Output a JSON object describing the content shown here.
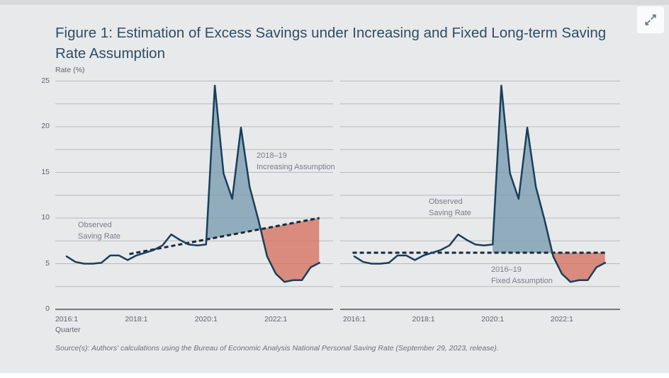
{
  "card": {
    "expand_icon": "expand-diagonal-arrows-icon"
  },
  "source_note": "Source(s): Authors' calculations using the Bureau of Economic Analysis National Personal Saving Rate (September 29, 2023, release).",
  "chart_data": {
    "type": "area",
    "title": "Figure 1: Estimation of Excess Savings under Increasing and Fixed Long-term Saving Rate Assumption",
    "ylabel": "Rate (%)",
    "xlabel": "Quarter",
    "ylim": [
      0,
      25
    ],
    "y_ticks": [
      0,
      5,
      10,
      15,
      20,
      25
    ],
    "gridlines_every": 2.5,
    "grid": true,
    "x": [
      "2016:1",
      "2016:2",
      "2016:3",
      "2016:4",
      "2017:1",
      "2017:2",
      "2017:3",
      "2017:4",
      "2018:1",
      "2018:2",
      "2018:3",
      "2018:4",
      "2019:1",
      "2019:2",
      "2019:3",
      "2019:4",
      "2020:1",
      "2020:2",
      "2020:3",
      "2020:4",
      "2021:1",
      "2021:2",
      "2021:3",
      "2021:4",
      "2022:1",
      "2022:2",
      "2022:3",
      "2022:4",
      "2023:1",
      "2023:2"
    ],
    "series": [
      {
        "name": "Observed Saving Rate",
        "values": [
          5.8,
          5.2,
          5.0,
          5.0,
          5.1,
          5.9,
          5.9,
          5.4,
          5.9,
          6.2,
          6.5,
          7.0,
          8.2,
          7.6,
          7.1,
          7.0,
          7.1,
          24.5,
          14.9,
          12.1,
          19.9,
          13.4,
          9.8,
          5.8,
          3.9,
          3.0,
          3.2,
          3.2,
          4.6,
          5.1
        ]
      }
    ],
    "panels": [
      {
        "id": "increasing-assumption",
        "x_ticks": [
          "2016:1",
          "2018:1",
          "2020:1",
          "2022:1"
        ],
        "observed_label": [
          "Observed",
          "Saving Rate"
        ],
        "trend": {
          "style": "dashed",
          "label": [
            "2018–19",
            "Increasing Assumption"
          ],
          "start_quarter": "2018:1",
          "start_value": 6.2,
          "end_quarter": "2023:2",
          "end_value": 10.0
        },
        "excess_fill_from": "2020:1"
      },
      {
        "id": "fixed-assumption",
        "x_ticks": [
          "2016:1",
          "2018:1",
          "2020:1",
          "2022:1"
        ],
        "observed_label": [
          "Observed",
          "Saving Rate"
        ],
        "trend": {
          "style": "dashed",
          "label": [
            "2016–19",
            "Fixed Assumption"
          ],
          "start_quarter": "2016:1",
          "start_value": 6.2,
          "end_quarter": "2023:2",
          "end_value": 6.2
        },
        "excess_fill_from": "2020:1"
      }
    ],
    "colors": {
      "line": "#1a3f59",
      "trend": "#17293a",
      "excess_fill": "#7d9fb2",
      "dissaving_fill": "#d57665",
      "grid": "#b7b9bb",
      "axis": "#76787b",
      "card_bg": "#e8e9eb",
      "title": "#2e4d66"
    }
  }
}
